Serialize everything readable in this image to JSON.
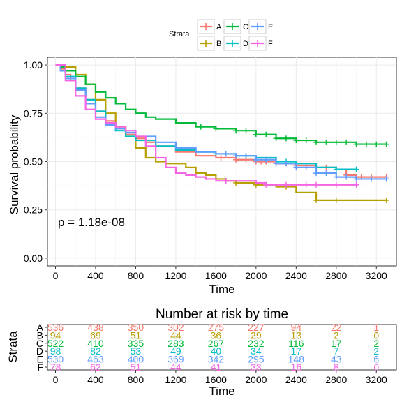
{
  "chart_data": [
    {
      "type": "line",
      "step": true,
      "xlabel": "Time",
      "ylabel": "Survival probability",
      "xlim": [
        -80,
        3400
      ],
      "ylim": [
        -0.04,
        1.04
      ],
      "x_ticks": [
        0,
        400,
        800,
        1200,
        1600,
        2000,
        2400,
        2800,
        3200
      ],
      "y_ticks": [
        0.0,
        0.25,
        0.5,
        0.75,
        1.0
      ],
      "y_tick_labels": [
        "0.00",
        "0.25",
        "0.50",
        "0.75",
        "1.00"
      ],
      "grid": true,
      "annotation": "p = 1.18e-08",
      "legend": {
        "title": "Strata",
        "position": "top",
        "entries": [
          "A",
          "B",
          "C",
          "D",
          "E",
          "F"
        ]
      },
      "series": [
        {
          "name": "A",
          "color": "#F8766D",
          "x": [
            0,
            50,
            100,
            150,
            200,
            300,
            400,
            500,
            600,
            700,
            800,
            900,
            1000,
            1200,
            1400,
            1600,
            1800,
            2000,
            2200,
            2400,
            2600,
            2800,
            2900,
            3000,
            3300
          ],
          "y": [
            1.0,
            0.98,
            0.95,
            0.92,
            0.88,
            0.82,
            0.76,
            0.71,
            0.67,
            0.64,
            0.62,
            0.6,
            0.58,
            0.55,
            0.53,
            0.52,
            0.51,
            0.5,
            0.49,
            0.48,
            0.47,
            0.46,
            0.43,
            0.42,
            0.42
          ],
          "censor_x": [
            1650,
            1800,
            1900,
            2000,
            2050,
            2100,
            2200,
            2300,
            2400,
            2500,
            2600,
            2700,
            2900,
            3050,
            3150,
            3300
          ]
        },
        {
          "name": "B",
          "color": "#B79F00",
          "x": [
            0,
            100,
            200,
            300,
            400,
            500,
            600,
            700,
            800,
            900,
            1000,
            1100,
            1200,
            1300,
            1400,
            1500,
            1600,
            1700,
            1800,
            2000,
            2200,
            2400,
            2600,
            3300
          ],
          "y": [
            1.0,
            0.99,
            0.95,
            0.9,
            0.82,
            0.75,
            0.68,
            0.63,
            0.57,
            0.52,
            0.5,
            0.49,
            0.49,
            0.47,
            0.44,
            0.43,
            0.41,
            0.4,
            0.39,
            0.38,
            0.37,
            0.34,
            0.3,
            0.3
          ],
          "censor_x": [
            1800,
            2000,
            2300,
            2600,
            2800,
            3300
          ]
        },
        {
          "name": "C",
          "color": "#00BA38",
          "x": [
            0,
            50,
            100,
            200,
            300,
            400,
            500,
            600,
            700,
            800,
            900,
            1000,
            1200,
            1400,
            1600,
            1800,
            2000,
            2200,
            2400,
            2600,
            2800,
            3000,
            3300
          ],
          "y": [
            1.0,
            0.99,
            0.97,
            0.94,
            0.9,
            0.86,
            0.83,
            0.8,
            0.77,
            0.75,
            0.73,
            0.72,
            0.7,
            0.68,
            0.67,
            0.66,
            0.64,
            0.62,
            0.61,
            0.6,
            0.6,
            0.59,
            0.59
          ],
          "censor_x": [
            1450,
            1600,
            1800,
            1900,
            2000,
            2100,
            2200,
            2300,
            2400,
            2500,
            2600,
            2700,
            2800,
            2900,
            3000,
            3100,
            3200,
            3300
          ]
        },
        {
          "name": "D",
          "color": "#00BFC4",
          "x": [
            0,
            100,
            200,
            300,
            400,
            500,
            600,
            700,
            800,
            1000,
            1200,
            1400,
            1600,
            1800,
            2000,
            2200,
            2400,
            2600,
            2800,
            3000
          ],
          "y": [
            1.0,
            0.94,
            0.88,
            0.82,
            0.76,
            0.7,
            0.66,
            0.63,
            0.61,
            0.58,
            0.56,
            0.55,
            0.54,
            0.53,
            0.52,
            0.5,
            0.49,
            0.47,
            0.46,
            0.46
          ],
          "censor_x": [
            1600,
            1900,
            2300,
            2600,
            2800,
            3000
          ]
        },
        {
          "name": "E",
          "color": "#619CFF",
          "x": [
            0,
            50,
            100,
            200,
            300,
            400,
            500,
            600,
            700,
            800,
            1000,
            1200,
            1400,
            1600,
            1800,
            2000,
            2200,
            2400,
            2600,
            2800,
            3000,
            3300
          ],
          "y": [
            1.0,
            0.97,
            0.93,
            0.87,
            0.8,
            0.73,
            0.69,
            0.67,
            0.65,
            0.63,
            0.6,
            0.57,
            0.55,
            0.54,
            0.53,
            0.51,
            0.49,
            0.47,
            0.44,
            0.42,
            0.41,
            0.41
          ],
          "censor_x": [
            1700,
            1800,
            1900,
            2000,
            2100,
            2200,
            2300,
            2400,
            2500,
            2600,
            2700,
            2800,
            2900,
            3000,
            3150,
            3300
          ]
        },
        {
          "name": "F",
          "color": "#F564E3",
          "x": [
            0,
            100,
            200,
            300,
            400,
            500,
            600,
            700,
            800,
            900,
            1000,
            1100,
            1200,
            1300,
            1400,
            1500,
            1600,
            1800,
            2000,
            2100,
            2200,
            2400,
            2600,
            2800,
            3000
          ],
          "y": [
            1.0,
            0.92,
            0.84,
            0.77,
            0.72,
            0.7,
            0.68,
            0.66,
            0.63,
            0.58,
            0.52,
            0.47,
            0.44,
            0.43,
            0.42,
            0.41,
            0.4,
            0.4,
            0.39,
            0.38,
            0.38,
            0.38,
            0.38,
            0.38,
            0.38
          ],
          "censor_x": [
            1700,
            2100,
            2300,
            2500,
            2600,
            2800,
            3000
          ]
        }
      ]
    },
    {
      "type": "table",
      "title": "Number at risk by time",
      "xlabel": "Time",
      "ylabel": "Strata",
      "x_ticks": [
        0,
        400,
        800,
        1200,
        1600,
        2000,
        2400,
        2800,
        3200
      ],
      "rows": [
        {
          "name": "A",
          "color": "#F8766D",
          "values": [
            "536",
            "438",
            "350",
            "302",
            "275",
            "227",
            "94",
            "22",
            "1"
          ]
        },
        {
          "name": "B",
          "color": "#B79F00",
          "values": [
            "94",
            "69",
            "51",
            "44",
            "36",
            "29",
            "13",
            "2",
            "0"
          ]
        },
        {
          "name": "C",
          "color": "#00BA38",
          "values": [
            "522",
            "410",
            "335",
            "283",
            "267",
            "232",
            "116",
            "17",
            "2"
          ]
        },
        {
          "name": "D",
          "color": "#00BFC4",
          "values": [
            "98",
            "82",
            "53",
            "49",
            "40",
            "34",
            "17",
            "7",
            "2"
          ]
        },
        {
          "name": "E",
          "color": "#619CFF",
          "values": [
            "530",
            "463",
            "400",
            "369",
            "342",
            "295",
            "148",
            "43",
            "6"
          ]
        },
        {
          "name": "F",
          "color": "#F564E3",
          "values": [
            "78",
            "62",
            "51",
            "44",
            "41",
            "33",
            "16",
            "8",
            "0"
          ]
        }
      ]
    }
  ]
}
